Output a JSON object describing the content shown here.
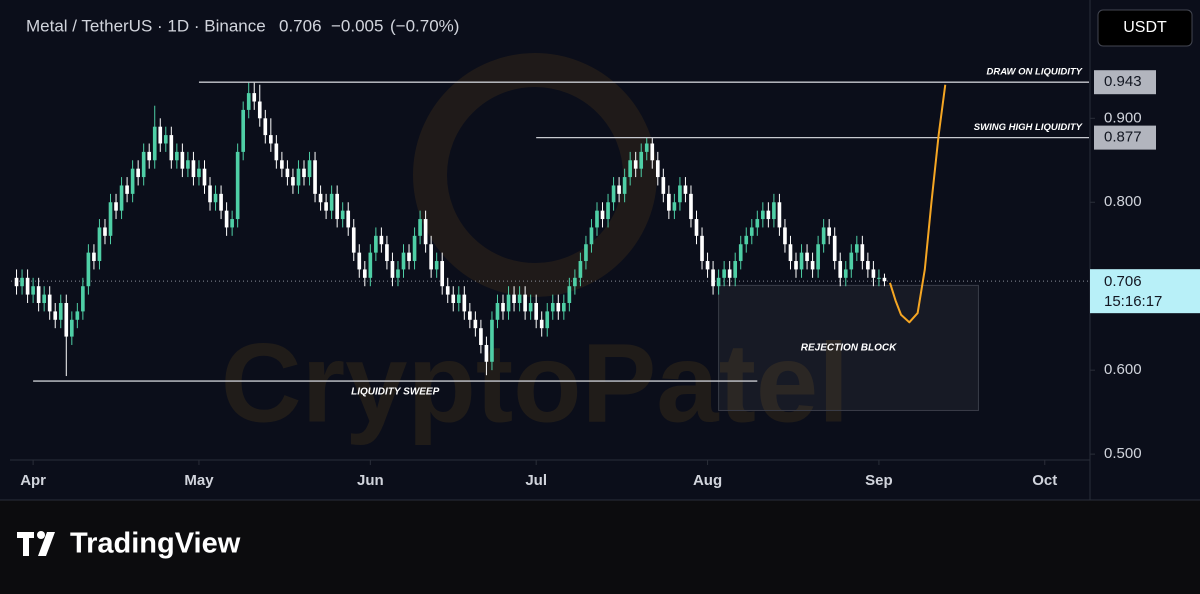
{
  "chart_data": {
    "type": "candlestick",
    "symbol": "Metal / TetherUS · 1D · Binance",
    "price": 0.706,
    "change": "−0.005",
    "change_pct": "(−0.70%)",
    "currency_button": "USDT",
    "watermark": "CryptoPatel",
    "brand": "TradingView",
    "up_color": "#4fcfa6",
    "down_color": "#ffffff",
    "xlim": [
      -1,
      194
    ],
    "ylim": [
      0.493,
      1.029
    ],
    "xticks": [
      {
        "value": 3,
        "label": "Apr"
      },
      {
        "value": 33,
        "label": "May"
      },
      {
        "value": 64,
        "label": "Jun"
      },
      {
        "value": 94,
        "label": "Jul"
      },
      {
        "value": 125,
        "label": "Aug"
      },
      {
        "value": 156,
        "label": "Sep"
      },
      {
        "value": 186,
        "label": "Oct"
      }
    ],
    "yticks": [
      {
        "value": 0.5,
        "label": "0.500"
      },
      {
        "value": 0.6,
        "label": "0.600"
      },
      {
        "value": 0.8,
        "label": "0.800"
      },
      {
        "value": 0.9,
        "label": "0.900"
      }
    ],
    "last_price": 0.706,
    "countdown": "15:16:17",
    "candles": [
      [
        0.71,
        0.72,
        0.69,
        0.7
      ],
      [
        0.7,
        0.72,
        0.69,
        0.71
      ],
      [
        0.71,
        0.72,
        0.68,
        0.69
      ],
      [
        0.69,
        0.71,
        0.68,
        0.7
      ],
      [
        0.7,
        0.71,
        0.67,
        0.68
      ],
      [
        0.68,
        0.7,
        0.67,
        0.69
      ],
      [
        0.69,
        0.7,
        0.66,
        0.67
      ],
      [
        0.67,
        0.68,
        0.65,
        0.66
      ],
      [
        0.66,
        0.69,
        0.65,
        0.68
      ],
      [
        0.68,
        0.69,
        0.593,
        0.64
      ],
      [
        0.64,
        0.67,
        0.63,
        0.66
      ],
      [
        0.66,
        0.68,
        0.65,
        0.67
      ],
      [
        0.67,
        0.71,
        0.66,
        0.7
      ],
      [
        0.7,
        0.75,
        0.69,
        0.74
      ],
      [
        0.74,
        0.75,
        0.72,
        0.73
      ],
      [
        0.73,
        0.78,
        0.72,
        0.77
      ],
      [
        0.77,
        0.78,
        0.75,
        0.76
      ],
      [
        0.76,
        0.81,
        0.75,
        0.8
      ],
      [
        0.8,
        0.81,
        0.78,
        0.79
      ],
      [
        0.79,
        0.83,
        0.78,
        0.82
      ],
      [
        0.82,
        0.83,
        0.8,
        0.81
      ],
      [
        0.81,
        0.85,
        0.8,
        0.84
      ],
      [
        0.84,
        0.85,
        0.82,
        0.83
      ],
      [
        0.83,
        0.87,
        0.82,
        0.86
      ],
      [
        0.86,
        0.87,
        0.84,
        0.85
      ],
      [
        0.85,
        0.915,
        0.84,
        0.89
      ],
      [
        0.89,
        0.9,
        0.86,
        0.87
      ],
      [
        0.87,
        0.89,
        0.86,
        0.88
      ],
      [
        0.88,
        0.89,
        0.84,
        0.85
      ],
      [
        0.85,
        0.87,
        0.84,
        0.86
      ],
      [
        0.86,
        0.87,
        0.83,
        0.84
      ],
      [
        0.84,
        0.86,
        0.83,
        0.85
      ],
      [
        0.85,
        0.86,
        0.82,
        0.83
      ],
      [
        0.83,
        0.85,
        0.82,
        0.84
      ],
      [
        0.84,
        0.85,
        0.81,
        0.82
      ],
      [
        0.82,
        0.83,
        0.79,
        0.8
      ],
      [
        0.8,
        0.82,
        0.79,
        0.81
      ],
      [
        0.81,
        0.82,
        0.78,
        0.79
      ],
      [
        0.79,
        0.8,
        0.76,
        0.77
      ],
      [
        0.77,
        0.79,
        0.76,
        0.78
      ],
      [
        0.78,
        0.87,
        0.77,
        0.86
      ],
      [
        0.86,
        0.92,
        0.85,
        0.91
      ],
      [
        0.91,
        0.943,
        0.9,
        0.93
      ],
      [
        0.93,
        0.943,
        0.91,
        0.92
      ],
      [
        0.92,
        0.94,
        0.89,
        0.9
      ],
      [
        0.9,
        0.91,
        0.87,
        0.88
      ],
      [
        0.88,
        0.9,
        0.86,
        0.87
      ],
      [
        0.87,
        0.88,
        0.84,
        0.85
      ],
      [
        0.85,
        0.86,
        0.83,
        0.84
      ],
      [
        0.84,
        0.85,
        0.82,
        0.83
      ],
      [
        0.83,
        0.84,
        0.81,
        0.82
      ],
      [
        0.82,
        0.85,
        0.81,
        0.84
      ],
      [
        0.84,
        0.85,
        0.82,
        0.83
      ],
      [
        0.83,
        0.86,
        0.82,
        0.85
      ],
      [
        0.85,
        0.86,
        0.8,
        0.81
      ],
      [
        0.81,
        0.82,
        0.79,
        0.8
      ],
      [
        0.8,
        0.81,
        0.78,
        0.79
      ],
      [
        0.79,
        0.82,
        0.78,
        0.81
      ],
      [
        0.81,
        0.82,
        0.77,
        0.78
      ],
      [
        0.78,
        0.8,
        0.77,
        0.79
      ],
      [
        0.79,
        0.8,
        0.76,
        0.77
      ],
      [
        0.77,
        0.78,
        0.73,
        0.74
      ],
      [
        0.74,
        0.75,
        0.71,
        0.72
      ],
      [
        0.72,
        0.73,
        0.7,
        0.71
      ],
      [
        0.71,
        0.75,
        0.7,
        0.74
      ],
      [
        0.74,
        0.77,
        0.73,
        0.76
      ],
      [
        0.76,
        0.77,
        0.74,
        0.75
      ],
      [
        0.75,
        0.76,
        0.72,
        0.73
      ],
      [
        0.73,
        0.74,
        0.7,
        0.71
      ],
      [
        0.71,
        0.73,
        0.7,
        0.72
      ],
      [
        0.72,
        0.75,
        0.71,
        0.74
      ],
      [
        0.74,
        0.75,
        0.72,
        0.73
      ],
      [
        0.73,
        0.77,
        0.72,
        0.76
      ],
      [
        0.76,
        0.79,
        0.75,
        0.78
      ],
      [
        0.78,
        0.79,
        0.74,
        0.75
      ],
      [
        0.75,
        0.76,
        0.71,
        0.72
      ],
      [
        0.72,
        0.74,
        0.71,
        0.73
      ],
      [
        0.73,
        0.74,
        0.69,
        0.7
      ],
      [
        0.7,
        0.71,
        0.68,
        0.69
      ],
      [
        0.69,
        0.7,
        0.67,
        0.68
      ],
      [
        0.68,
        0.7,
        0.67,
        0.69
      ],
      [
        0.69,
        0.7,
        0.66,
        0.67
      ],
      [
        0.67,
        0.68,
        0.65,
        0.66
      ],
      [
        0.66,
        0.67,
        0.64,
        0.65
      ],
      [
        0.65,
        0.66,
        0.62,
        0.63
      ],
      [
        0.63,
        0.64,
        0.594,
        0.61
      ],
      [
        0.61,
        0.67,
        0.6,
        0.66
      ],
      [
        0.66,
        0.69,
        0.65,
        0.68
      ],
      [
        0.68,
        0.69,
        0.66,
        0.67
      ],
      [
        0.67,
        0.7,
        0.66,
        0.69
      ],
      [
        0.69,
        0.7,
        0.67,
        0.68
      ],
      [
        0.68,
        0.7,
        0.67,
        0.69
      ],
      [
        0.69,
        0.7,
        0.66,
        0.67
      ],
      [
        0.67,
        0.69,
        0.66,
        0.68
      ],
      [
        0.68,
        0.69,
        0.65,
        0.66
      ],
      [
        0.66,
        0.67,
        0.64,
        0.65
      ],
      [
        0.65,
        0.68,
        0.64,
        0.67
      ],
      [
        0.67,
        0.69,
        0.66,
        0.68
      ],
      [
        0.68,
        0.69,
        0.66,
        0.67
      ],
      [
        0.67,
        0.69,
        0.66,
        0.68
      ],
      [
        0.68,
        0.71,
        0.67,
        0.7
      ],
      [
        0.7,
        0.72,
        0.69,
        0.71
      ],
      [
        0.71,
        0.74,
        0.7,
        0.73
      ],
      [
        0.73,
        0.76,
        0.72,
        0.75
      ],
      [
        0.75,
        0.78,
        0.74,
        0.77
      ],
      [
        0.77,
        0.8,
        0.76,
        0.79
      ],
      [
        0.79,
        0.8,
        0.77,
        0.78
      ],
      [
        0.78,
        0.81,
        0.77,
        0.8
      ],
      [
        0.8,
        0.83,
        0.79,
        0.82
      ],
      [
        0.82,
        0.83,
        0.8,
        0.81
      ],
      [
        0.81,
        0.84,
        0.8,
        0.83
      ],
      [
        0.83,
        0.86,
        0.82,
        0.85
      ],
      [
        0.85,
        0.86,
        0.83,
        0.84
      ],
      [
        0.84,
        0.87,
        0.83,
        0.86
      ],
      [
        0.86,
        0.877,
        0.85,
        0.87
      ],
      [
        0.87,
        0.877,
        0.84,
        0.85
      ],
      [
        0.85,
        0.86,
        0.82,
        0.83
      ],
      [
        0.83,
        0.84,
        0.8,
        0.81
      ],
      [
        0.81,
        0.82,
        0.78,
        0.79
      ],
      [
        0.79,
        0.81,
        0.78,
        0.8
      ],
      [
        0.8,
        0.83,
        0.79,
        0.82
      ],
      [
        0.82,
        0.83,
        0.8,
        0.81
      ],
      [
        0.81,
        0.82,
        0.77,
        0.78
      ],
      [
        0.78,
        0.79,
        0.75,
        0.76
      ],
      [
        0.76,
        0.77,
        0.72,
        0.73
      ],
      [
        0.73,
        0.74,
        0.71,
        0.72
      ],
      [
        0.72,
        0.73,
        0.69,
        0.7
      ],
      [
        0.7,
        0.72,
        0.69,
        0.71
      ],
      [
        0.71,
        0.73,
        0.7,
        0.72
      ],
      [
        0.72,
        0.73,
        0.7,
        0.71
      ],
      [
        0.71,
        0.74,
        0.7,
        0.73
      ],
      [
        0.73,
        0.76,
        0.72,
        0.75
      ],
      [
        0.75,
        0.77,
        0.74,
        0.76
      ],
      [
        0.76,
        0.78,
        0.75,
        0.77
      ],
      [
        0.77,
        0.79,
        0.76,
        0.78
      ],
      [
        0.78,
        0.8,
        0.77,
        0.79
      ],
      [
        0.79,
        0.8,
        0.77,
        0.78
      ],
      [
        0.78,
        0.81,
        0.77,
        0.8
      ],
      [
        0.8,
        0.81,
        0.76,
        0.77
      ],
      [
        0.77,
        0.78,
        0.74,
        0.75
      ],
      [
        0.75,
        0.76,
        0.72,
        0.73
      ],
      [
        0.73,
        0.74,
        0.71,
        0.72
      ],
      [
        0.72,
        0.75,
        0.71,
        0.74
      ],
      [
        0.74,
        0.75,
        0.72,
        0.73
      ],
      [
        0.73,
        0.74,
        0.71,
        0.72
      ],
      [
        0.72,
        0.76,
        0.71,
        0.75
      ],
      [
        0.75,
        0.78,
        0.74,
        0.77
      ],
      [
        0.77,
        0.78,
        0.75,
        0.76
      ],
      [
        0.76,
        0.77,
        0.72,
        0.73
      ],
      [
        0.73,
        0.74,
        0.7,
        0.71
      ],
      [
        0.71,
        0.73,
        0.7,
        0.72
      ],
      [
        0.72,
        0.75,
        0.71,
        0.74
      ],
      [
        0.74,
        0.76,
        0.73,
        0.75
      ],
      [
        0.75,
        0.76,
        0.72,
        0.73
      ],
      [
        0.73,
        0.74,
        0.71,
        0.72
      ],
      [
        0.72,
        0.73,
        0.7,
        0.71
      ],
      [
        0.71,
        0.72,
        0.7,
        0.71
      ],
      [
        0.71,
        0.715,
        0.7,
        0.706
      ]
    ],
    "levels": [
      {
        "label": "DRAW ON LIQUIDITY",
        "value": 0.943,
        "from": 33,
        "tag": true
      },
      {
        "label": "SWING HIGH LIQUIDITY",
        "value": 0.877,
        "from": 94,
        "tag": true
      },
      {
        "label": "LIQUIDITY SWEEP",
        "value": 0.587,
        "from": 3,
        "to": 134,
        "tag": false
      }
    ],
    "zone": {
      "label": "REJECTION BLOCK",
      "x": [
        127,
        174
      ],
      "y": [
        0.552,
        0.701
      ]
    },
    "projection": {
      "color": "#f5a623",
      "x": [
        158,
        159,
        160,
        161.5,
        163,
        164.3,
        165.5,
        166.8,
        168
      ],
      "y": [
        0.704,
        0.683,
        0.666,
        0.657,
        0.668,
        0.72,
        0.8,
        0.88,
        0.94
      ]
    }
  }
}
